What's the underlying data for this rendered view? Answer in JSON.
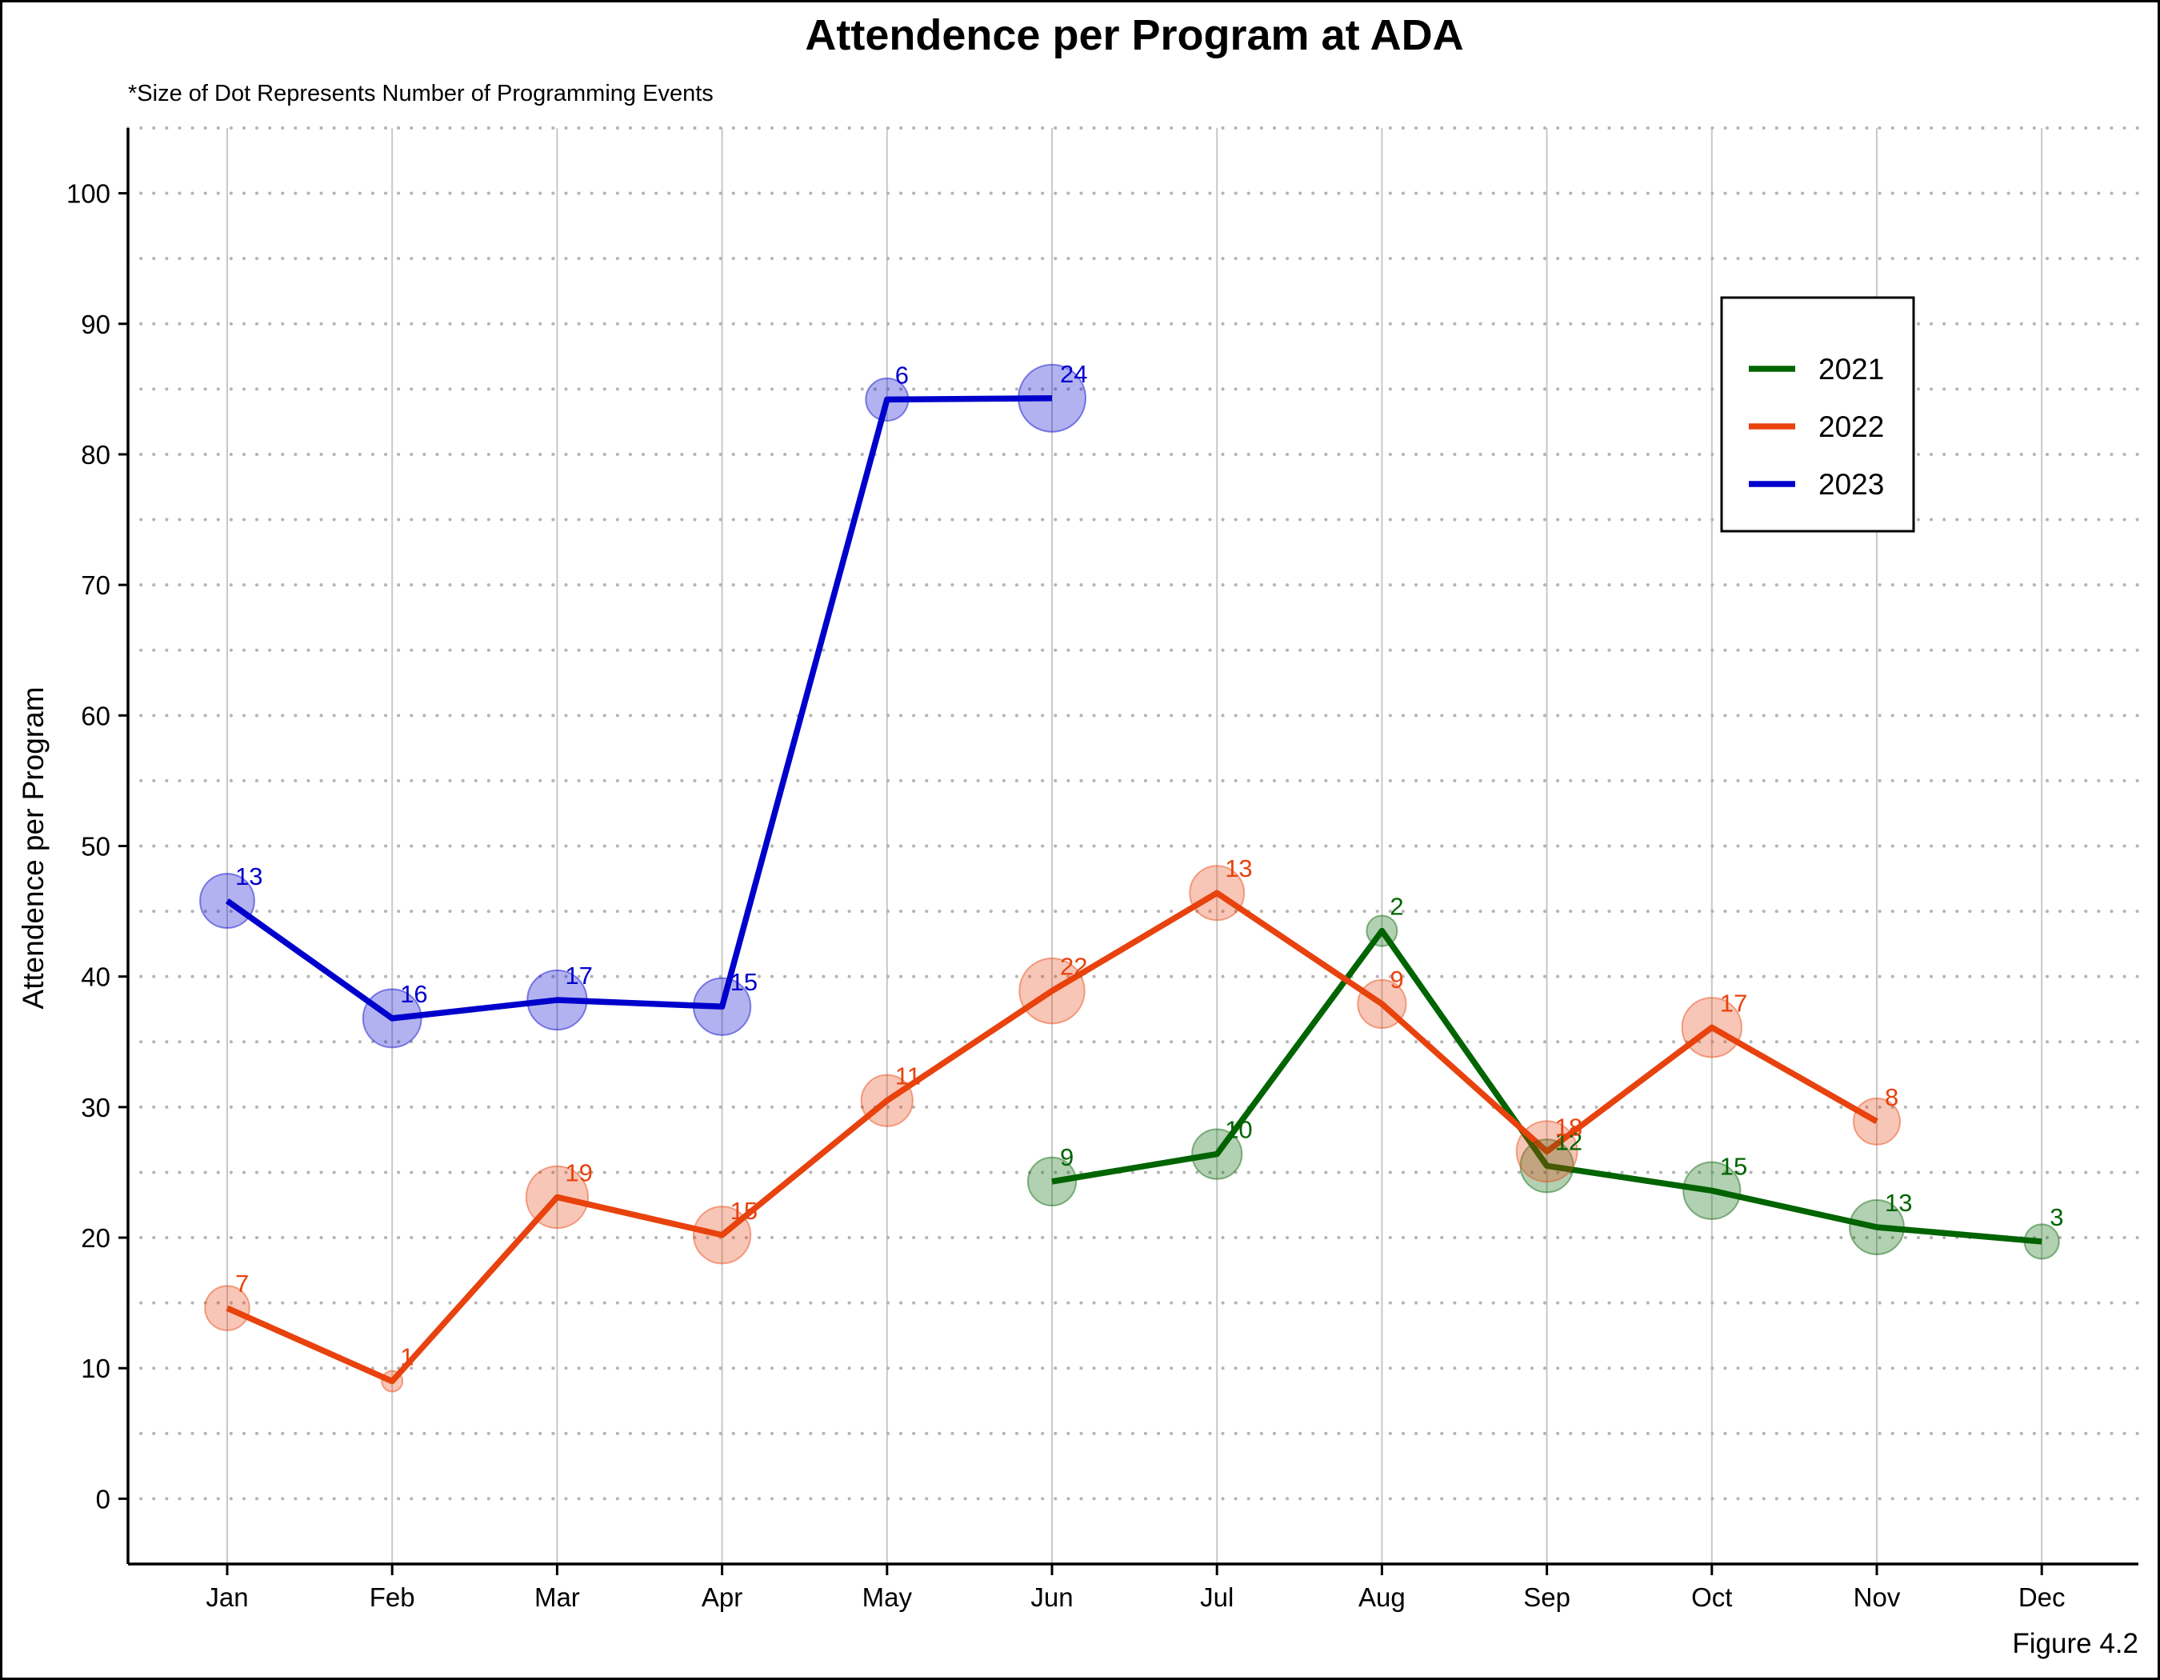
{
  "figure_label": "Figure 4.2",
  "chart_data": {
    "type": "line",
    "title": "Attendence per Program at ADA",
    "subtitle": "*Size of Dot Represents Number of Programming Events",
    "xlabel": "",
    "ylabel": "Attendence per Program",
    "categories": [
      "Jan",
      "Feb",
      "Mar",
      "Apr",
      "May",
      "Jun",
      "Jul",
      "Aug",
      "Sep",
      "Oct",
      "Nov",
      "Dec"
    ],
    "ylim": [
      -5,
      105
    ],
    "yticks": [
      0,
      10,
      20,
      30,
      40,
      50,
      60,
      70,
      80,
      90,
      100
    ],
    "grid": "vertical solid at months; horizontal dotted every 5",
    "legend_position": "top-right",
    "point_size_meaning": "Number of Programming Events",
    "series": [
      {
        "name": "2021",
        "color": "#006400",
        "points": [
          {
            "month": "Jun",
            "value": 24.3,
            "events": 9
          },
          {
            "month": "Jul",
            "value": 26.4,
            "events": 10
          },
          {
            "month": "Aug",
            "value": 43.5,
            "events": 2
          },
          {
            "month": "Sep",
            "value": 25.5,
            "events": 12
          },
          {
            "month": "Oct",
            "value": 23.6,
            "events": 15
          },
          {
            "month": "Nov",
            "value": 20.8,
            "events": 13
          },
          {
            "month": "Dec",
            "value": 19.7,
            "events": 3
          }
        ]
      },
      {
        "name": "2022",
        "color": "#E8420E",
        "points": [
          {
            "month": "Jan",
            "value": 14.6,
            "events": 7
          },
          {
            "month": "Feb",
            "value": 9.0,
            "events": 1
          },
          {
            "month": "Mar",
            "value": 23.1,
            "events": 19
          },
          {
            "month": "Apr",
            "value": 20.2,
            "events": 15
          },
          {
            "month": "May",
            "value": 30.5,
            "events": 11
          },
          {
            "month": "Jun",
            "value": 38.9,
            "events": 22
          },
          {
            "month": "Jul",
            "value": 46.4,
            "events": 13
          },
          {
            "month": "Aug",
            "value": 37.9,
            "events": 9
          },
          {
            "month": "Sep",
            "value": 26.6,
            "events": 18
          },
          {
            "month": "Oct",
            "value": 36.1,
            "events": 17
          },
          {
            "month": "Nov",
            "value": 28.9,
            "events": 8
          }
        ]
      },
      {
        "name": "2023",
        "color": "#0000CC",
        "points": [
          {
            "month": "Jan",
            "value": 45.8,
            "events": 13
          },
          {
            "month": "Feb",
            "value": 36.8,
            "events": 16
          },
          {
            "month": "Mar",
            "value": 38.2,
            "events": 17
          },
          {
            "month": "Apr",
            "value": 37.7,
            "events": 15
          },
          {
            "month": "May",
            "value": 84.2,
            "events": 6
          },
          {
            "month": "Jun",
            "value": 84.3,
            "events": 24
          }
        ]
      }
    ]
  }
}
